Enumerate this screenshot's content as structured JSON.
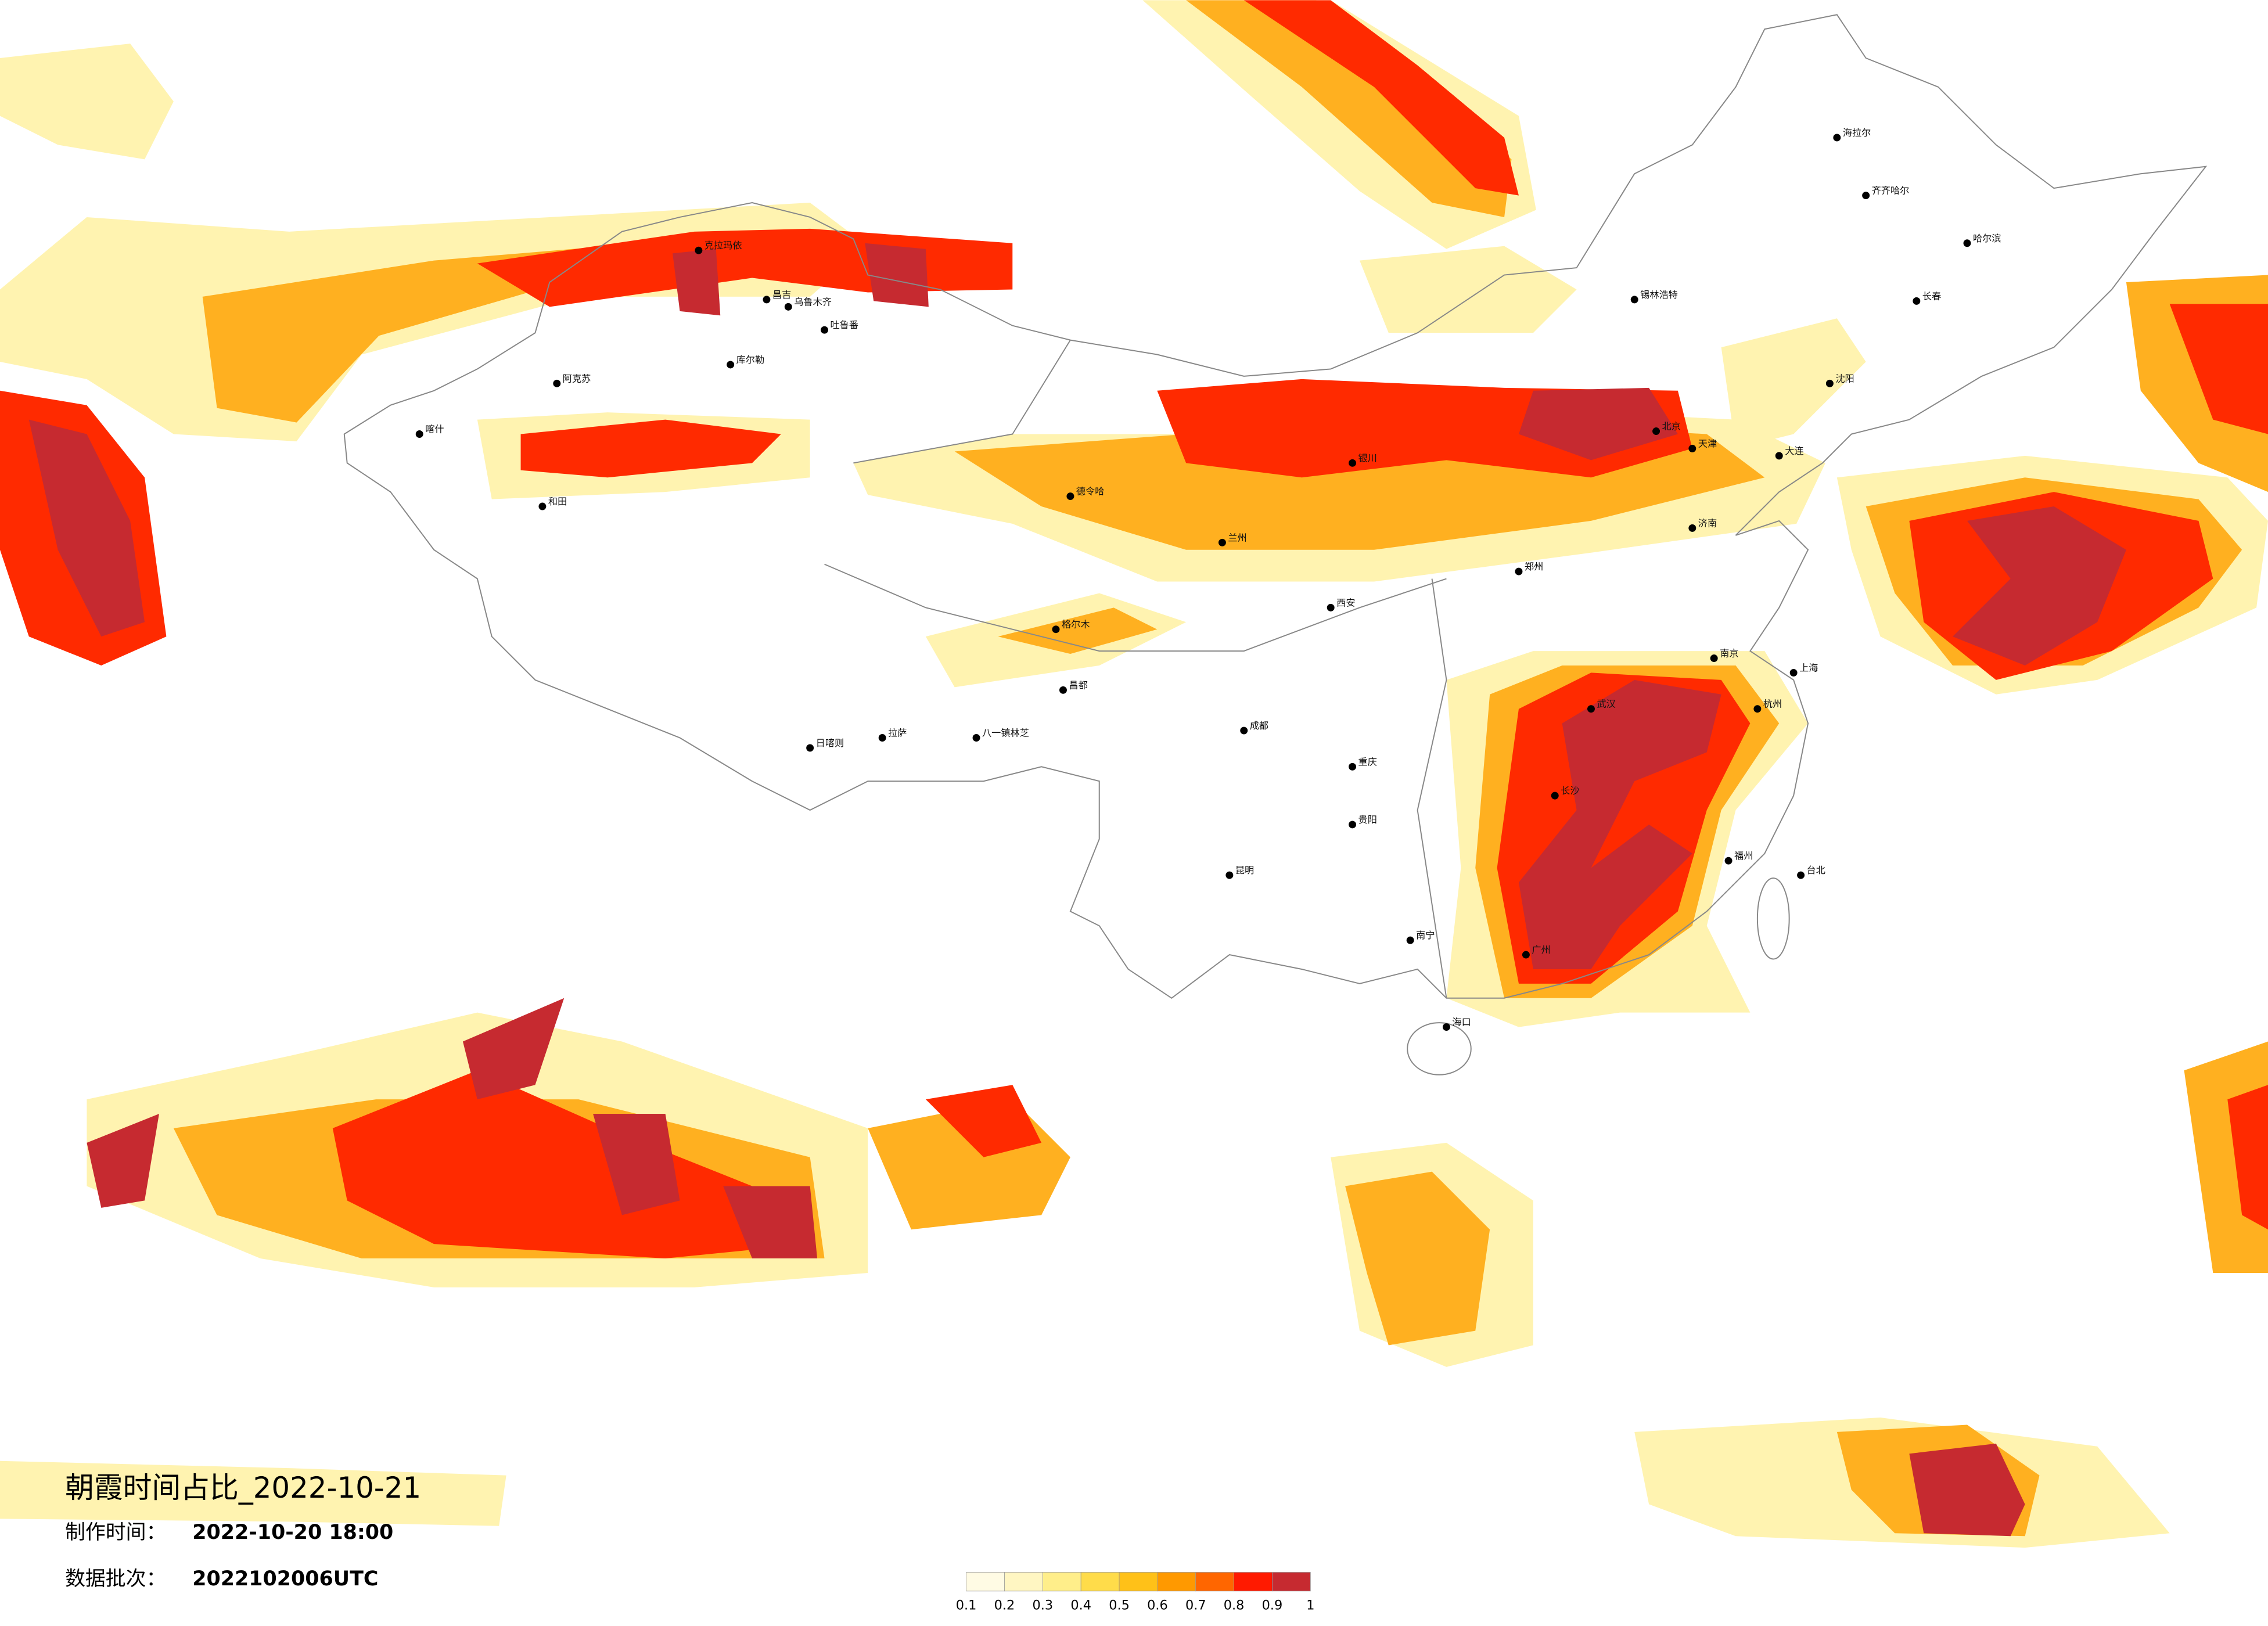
{
  "header": {
    "title": "朝霞时间占比_2022-10-21",
    "made_label": "制作时间：",
    "made_value": "2022-10-20 18:00",
    "batch_label": "数据批次：",
    "batch_value": "2022102006UTC"
  },
  "legend": {
    "ticks": [
      0.1,
      0.2,
      0.3,
      0.4,
      0.5,
      0.6,
      0.7,
      0.8,
      0.9,
      1
    ],
    "colors": [
      "#fffbe4",
      "#fff6c2",
      "#ffee8a",
      "#ffdc4a",
      "#ffc118",
      "#ff9900",
      "#ff6600",
      "#ff1a00",
      "#c62a30"
    ]
  },
  "cities": [
    "克拉玛依",
    "昌吉",
    "乌鲁木齐",
    "吐鲁番",
    "库尔勒",
    "阿克苏",
    "喀什",
    "和田",
    "德令哈",
    "格尔木",
    "拉萨",
    "日喀则",
    "八一镇林芝",
    "昌都",
    "海拉尔",
    "齐齐哈尔",
    "哈尔滨",
    "长春",
    "沈阳",
    "大连",
    "锡林浩特",
    "北京",
    "天津",
    "济南",
    "郑州",
    "西安",
    "兰州",
    "银川",
    "成都",
    "重庆",
    "贵阳",
    "昆明",
    "南宁",
    "广州",
    "海口",
    "长沙",
    "武汉",
    "南京",
    "上海",
    "杭州",
    "福州",
    "台北"
  ]
}
